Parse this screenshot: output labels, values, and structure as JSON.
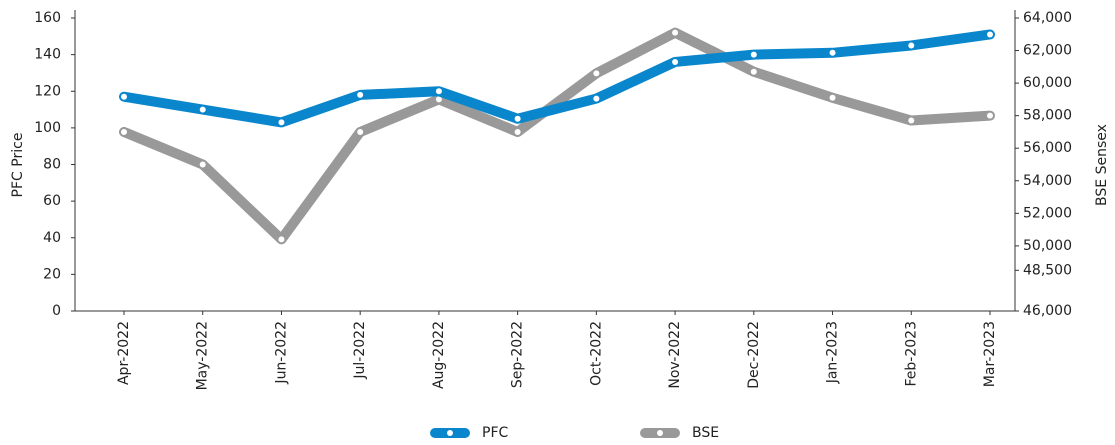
{
  "chart_data": {
    "type": "line",
    "categories": [
      "Apr-2022",
      "May-2022",
      "Jun-2022",
      "Jul-2022",
      "Aug-2022",
      "Sep-2022",
      "Oct-2022",
      "Nov-2022",
      "Dec-2022",
      "Jan-2023",
      "Feb-2023",
      "Mar-2023"
    ],
    "series": [
      {
        "name": "PFC",
        "color": "#0a86cc",
        "values": [
          117,
          110,
          103,
          118,
          120,
          105,
          116,
          136,
          140,
          141,
          145,
          151
        ]
      },
      {
        "name": "BSE",
        "color": "#999999",
        "axis": "y2",
        "values": [
          57000,
          55000,
          50400,
          57000,
          59000,
          57000,
          60600,
          63100,
          60700,
          59100,
          57700,
          58000
        ]
      }
    ],
    "ylabel": "PFC Price",
    "y2label": "BSE Sensex",
    "ylim": [
      0,
      160
    ],
    "yticks": [
      0,
      20,
      40,
      60,
      80,
      100,
      120,
      140,
      160
    ],
    "y2lim": [
      46000,
      64000
    ],
    "y2ticks": [
      {
        "value": 46000,
        "label": "46,000"
      },
      {
        "value": 48500,
        "label": "48,500"
      },
      {
        "value": 50000,
        "label": "50,000"
      },
      {
        "value": 52000,
        "label": "52,000"
      },
      {
        "value": 54000,
        "label": "54,000"
      },
      {
        "value": 56000,
        "label": "56,000"
      },
      {
        "value": 58000,
        "label": "58,000"
      },
      {
        "value": 60000,
        "label": "60,000"
      },
      {
        "value": 62000,
        "label": "62,000"
      },
      {
        "value": 64000,
        "label": "64,000"
      }
    ],
    "legend": "bottom"
  }
}
